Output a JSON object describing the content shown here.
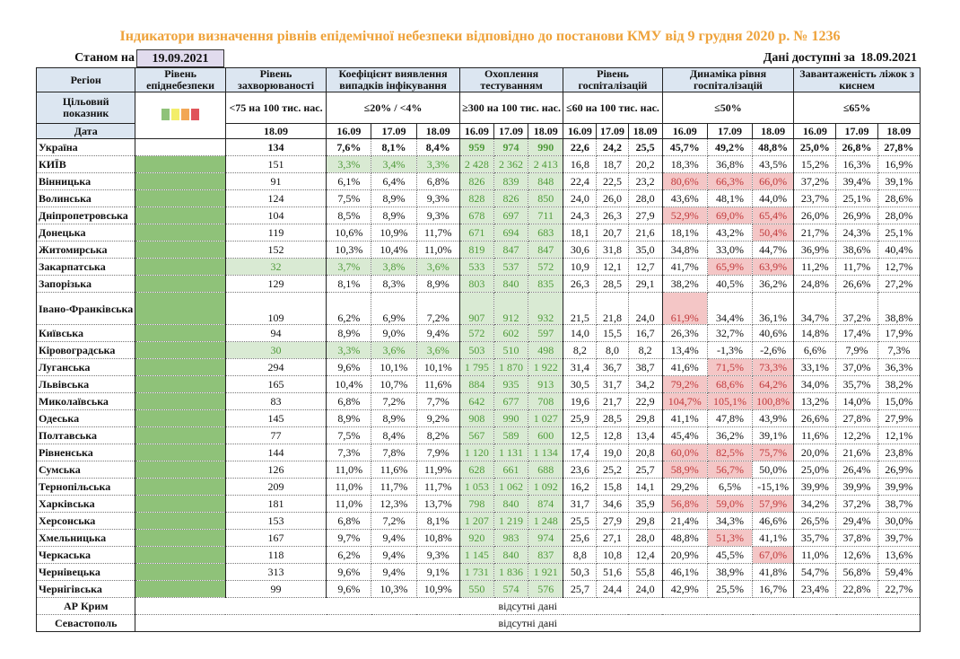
{
  "title": "Індикатори визначення рівнів епідемічної небезпеки відповідно до постанови КМУ від 9 грудня 2020 р. № 1236",
  "as_of_label": "Станом на",
  "as_of_date": "19.09.2021",
  "available_label": "Дані доступні за",
  "available_date": "18.09.2021",
  "headers": {
    "region": "Регіон",
    "level": "Рівень епіднебезпеки",
    "incidence": "Рівень захворюваності",
    "coef": "Коефіцієнт виявлення випадків інфікування",
    "testing": "Охоплення тестуванням",
    "hosp": "Рівень госпіталізацій",
    "dyn": "Динаміка рівня госпіталізацій",
    "beds": "Завантаженість ліжок з киснем"
  },
  "target": {
    "label": "Цільовий показник",
    "incidence": "<75 на 100 тис. нас.",
    "coef": "≤20% / <4%",
    "testing": "≥300 на 100 тис. нас.",
    "hosp": "≤60 на 100 тис. нас.",
    "dyn": "≤50%",
    "beds": "≤65%",
    "level_colors": [
      "#8fc279",
      "#f3ee6a",
      "#f2a755",
      "#e0545a"
    ]
  },
  "date_label": "Дата",
  "incidence_date": "18.09",
  "dates": [
    "16.09",
    "17.09",
    "18.09"
  ],
  "colors": {
    "level_green": "#8fc279",
    "ok_bg": "#d9ead3",
    "bad_bg": "#f4c6c6",
    "title": "#eea23a",
    "header": "#dce6f1"
  },
  "rows": [
    {
      "region": "Україна",
      "inc": "134",
      "coef": [
        "7,6%",
        "8,1%",
        "8,4%"
      ],
      "test": [
        "959",
        "974",
        "990"
      ],
      "hosp": [
        "22,6",
        "24,2",
        "25,5"
      ],
      "dyn": [
        "45,7%",
        "49,2%",
        "48,8%"
      ],
      "beds": [
        "25,0%",
        "26,8%",
        "27,8%"
      ],
      "red": [
        0,
        0,
        0
      ]
    },
    {
      "region": "КИЇВ",
      "inc": "151",
      "coef": [
        "3,3%",
        "3,4%",
        "3,3%"
      ],
      "test": [
        "2 428",
        "2 362",
        "2 413"
      ],
      "hosp": [
        "16,8",
        "18,7",
        "20,2"
      ],
      "dyn": [
        "18,3%",
        "36,8%",
        "43,5%"
      ],
      "beds": [
        "15,2%",
        "16,3%",
        "16,9%"
      ],
      "red": [
        0,
        0,
        0
      ],
      "coefg": 1
    },
    {
      "region": "Вінницька",
      "inc": "91",
      "coef": [
        "6,1%",
        "6,4%",
        "6,8%"
      ],
      "test": [
        "826",
        "839",
        "848"
      ],
      "hosp": [
        "22,4",
        "22,5",
        "23,2"
      ],
      "dyn": [
        "80,6%",
        "66,3%",
        "66,0%"
      ],
      "beds": [
        "37,2%",
        "39,4%",
        "39,1%"
      ],
      "red": [
        1,
        1,
        1
      ]
    },
    {
      "region": "Волинська",
      "inc": "124",
      "coef": [
        "7,5%",
        "8,9%",
        "9,3%"
      ],
      "test": [
        "828",
        "826",
        "850"
      ],
      "hosp": [
        "24,0",
        "26,0",
        "28,0"
      ],
      "dyn": [
        "43,6%",
        "48,1%",
        "44,0%"
      ],
      "beds": [
        "23,7%",
        "25,1%",
        "28,6%"
      ],
      "red": [
        0,
        0,
        0
      ]
    },
    {
      "region": "Дніпропетровська",
      "inc": "104",
      "coef": [
        "8,5%",
        "8,9%",
        "9,3%"
      ],
      "test": [
        "678",
        "697",
        "711"
      ],
      "hosp": [
        "24,3",
        "26,3",
        "27,9"
      ],
      "dyn": [
        "52,9%",
        "69,0%",
        "65,4%"
      ],
      "beds": [
        "26,0%",
        "26,9%",
        "28,0%"
      ],
      "red": [
        1,
        1,
        1
      ]
    },
    {
      "region": "Донецька",
      "inc": "119",
      "coef": [
        "10,6%",
        "10,9%",
        "11,7%"
      ],
      "test": [
        "671",
        "694",
        "683"
      ],
      "hosp": [
        "18,1",
        "20,7",
        "21,6"
      ],
      "dyn": [
        "18,1%",
        "43,2%",
        "50,4%"
      ],
      "beds": [
        "21,7%",
        "24,3%",
        "25,1%"
      ],
      "red": [
        0,
        0,
        1
      ]
    },
    {
      "region": "Житомирська",
      "inc": "152",
      "coef": [
        "10,3%",
        "10,4%",
        "11,0%"
      ],
      "test": [
        "819",
        "847",
        "847"
      ],
      "hosp": [
        "30,6",
        "31,8",
        "35,0"
      ],
      "dyn": [
        "34,8%",
        "33,0%",
        "44,7%"
      ],
      "beds": [
        "36,9%",
        "38,6%",
        "40,4%"
      ],
      "red": [
        0,
        0,
        0
      ]
    },
    {
      "region": "Закарпатська",
      "inc": "32",
      "coef": [
        "3,7%",
        "3,8%",
        "3,6%"
      ],
      "test": [
        "533",
        "537",
        "572"
      ],
      "hosp": [
        "10,9",
        "12,1",
        "12,7"
      ],
      "dyn": [
        "41,7%",
        "65,9%",
        "63,9%"
      ],
      "beds": [
        "11,2%",
        "11,7%",
        "12,7%"
      ],
      "red": [
        0,
        1,
        1
      ],
      "coefg": 1,
      "incg": 1
    },
    {
      "region": "Запорізька",
      "inc": "129",
      "coef": [
        "8,1%",
        "8,3%",
        "8,9%"
      ],
      "test": [
        "803",
        "840",
        "835"
      ],
      "hosp": [
        "26,3",
        "28,5",
        "29,1"
      ],
      "dyn": [
        "38,2%",
        "40,5%",
        "36,2%"
      ],
      "beds": [
        "24,8%",
        "26,6%",
        "27,2%"
      ],
      "red": [
        0,
        0,
        0
      ]
    },
    {
      "region": "Івано-Франківська",
      "inc": "109",
      "coef": [
        "6,2%",
        "6,9%",
        "7,2%"
      ],
      "test": [
        "907",
        "912",
        "932"
      ],
      "hosp": [
        "21,5",
        "21,8",
        "24,0"
      ],
      "dyn": [
        "61,9%",
        "34,4%",
        "36,1%"
      ],
      "beds": [
        "34,7%",
        "37,2%",
        "38,8%"
      ],
      "red": [
        1,
        0,
        0
      ],
      "tall": 1
    },
    {
      "region": "Київська",
      "inc": "94",
      "coef": [
        "8,9%",
        "9,0%",
        "9,4%"
      ],
      "test": [
        "572",
        "602",
        "597"
      ],
      "hosp": [
        "14,0",
        "15,5",
        "16,7"
      ],
      "dyn": [
        "26,3%",
        "32,7%",
        "40,6%"
      ],
      "beds": [
        "14,8%",
        "17,4%",
        "17,9%"
      ],
      "red": [
        0,
        0,
        0
      ]
    },
    {
      "region": "Кіровоградська",
      "inc": "30",
      "coef": [
        "3,3%",
        "3,6%",
        "3,6%"
      ],
      "test": [
        "503",
        "510",
        "498"
      ],
      "hosp": [
        "8,2",
        "8,0",
        "8,2"
      ],
      "dyn": [
        "13,4%",
        "-1,3%",
        "-2,6%"
      ],
      "beds": [
        "6,6%",
        "7,9%",
        "7,3%"
      ],
      "red": [
        0,
        0,
        0
      ],
      "coefg": 1,
      "incg": 1
    },
    {
      "region": "Луганська",
      "inc": "294",
      "coef": [
        "9,6%",
        "10,1%",
        "10,1%"
      ],
      "test": [
        "1 795",
        "1 870",
        "1 922"
      ],
      "hosp": [
        "31,4",
        "36,7",
        "38,7"
      ],
      "dyn": [
        "41,6%",
        "71,5%",
        "73,3%"
      ],
      "beds": [
        "33,1%",
        "37,0%",
        "36,3%"
      ],
      "red": [
        0,
        1,
        1
      ]
    },
    {
      "region": "Львівська",
      "inc": "165",
      "coef": [
        "10,4%",
        "10,7%",
        "11,6%"
      ],
      "test": [
        "884",
        "935",
        "913"
      ],
      "hosp": [
        "30,5",
        "31,7",
        "34,2"
      ],
      "dyn": [
        "79,2%",
        "68,6%",
        "64,2%"
      ],
      "beds": [
        "34,0%",
        "35,7%",
        "38,2%"
      ],
      "red": [
        1,
        1,
        1
      ]
    },
    {
      "region": "Миколаївська",
      "inc": "83",
      "coef": [
        "6,8%",
        "7,2%",
        "7,7%"
      ],
      "test": [
        "642",
        "677",
        "708"
      ],
      "hosp": [
        "19,6",
        "21,7",
        "22,9"
      ],
      "dyn": [
        "104,7%",
        "105,1%",
        "100,8%"
      ],
      "beds": [
        "13,2%",
        "14,0%",
        "15,0%"
      ],
      "red": [
        1,
        1,
        1
      ]
    },
    {
      "region": "Одеська",
      "inc": "145",
      "coef": [
        "8,9%",
        "8,9%",
        "9,2%"
      ],
      "test": [
        "908",
        "990",
        "1 027"
      ],
      "hosp": [
        "25,9",
        "28,5",
        "29,8"
      ],
      "dyn": [
        "41,1%",
        "47,8%",
        "43,9%"
      ],
      "beds": [
        "26,6%",
        "27,8%",
        "27,9%"
      ],
      "red": [
        0,
        0,
        0
      ]
    },
    {
      "region": "Полтавська",
      "inc": "77",
      "coef": [
        "7,5%",
        "8,4%",
        "8,2%"
      ],
      "test": [
        "567",
        "589",
        "600"
      ],
      "hosp": [
        "12,5",
        "12,8",
        "13,4"
      ],
      "dyn": [
        "45,4%",
        "36,2%",
        "39,1%"
      ],
      "beds": [
        "11,6%",
        "12,2%",
        "12,1%"
      ],
      "red": [
        0,
        0,
        0
      ]
    },
    {
      "region": "Рівненська",
      "inc": "144",
      "coef": [
        "7,3%",
        "7,8%",
        "7,9%"
      ],
      "test": [
        "1 120",
        "1 131",
        "1 134"
      ],
      "hosp": [
        "17,4",
        "19,0",
        "20,8"
      ],
      "dyn": [
        "60,0%",
        "82,5%",
        "75,7%"
      ],
      "beds": [
        "20,0%",
        "21,6%",
        "23,8%"
      ],
      "red": [
        1,
        1,
        1
      ]
    },
    {
      "region": "Сумська",
      "inc": "126",
      "coef": [
        "11,0%",
        "11,6%",
        "11,9%"
      ],
      "test": [
        "628",
        "661",
        "688"
      ],
      "hosp": [
        "23,6",
        "25,2",
        "25,7"
      ],
      "dyn": [
        "58,9%",
        "56,7%",
        "50,0%"
      ],
      "beds": [
        "25,0%",
        "26,4%",
        "26,9%"
      ],
      "red": [
        1,
        1,
        0
      ]
    },
    {
      "region": "Тернопільська",
      "inc": "209",
      "coef": [
        "11,0%",
        "11,7%",
        "11,7%"
      ],
      "test": [
        "1 053",
        "1 062",
        "1 092"
      ],
      "hosp": [
        "16,2",
        "15,8",
        "14,1"
      ],
      "dyn": [
        "29,2%",
        "6,5%",
        "-15,1%"
      ],
      "beds": [
        "39,9%",
        "39,9%",
        "39,9%"
      ],
      "red": [
        0,
        0,
        0
      ]
    },
    {
      "region": "Харківська",
      "inc": "181",
      "coef": [
        "11,0%",
        "12,3%",
        "13,7%"
      ],
      "test": [
        "798",
        "840",
        "874"
      ],
      "hosp": [
        "31,7",
        "34,6",
        "35,9"
      ],
      "dyn": [
        "56,8%",
        "59,0%",
        "57,9%"
      ],
      "beds": [
        "34,2%",
        "37,2%",
        "38,7%"
      ],
      "red": [
        1,
        1,
        1
      ]
    },
    {
      "region": "Херсонська",
      "inc": "153",
      "coef": [
        "6,8%",
        "7,2%",
        "8,1%"
      ],
      "test": [
        "1 207",
        "1 219",
        "1 248"
      ],
      "hosp": [
        "25,5",
        "27,9",
        "29,8"
      ],
      "dyn": [
        "21,4%",
        "34,3%",
        "46,6%"
      ],
      "beds": [
        "26,5%",
        "29,4%",
        "30,0%"
      ],
      "red": [
        0,
        0,
        0
      ]
    },
    {
      "region": "Хмельницька",
      "inc": "167",
      "coef": [
        "9,7%",
        "9,4%",
        "10,8%"
      ],
      "test": [
        "920",
        "983",
        "974"
      ],
      "hosp": [
        "25,6",
        "27,1",
        "28,0"
      ],
      "dyn": [
        "48,8%",
        "51,3%",
        "41,1%"
      ],
      "beds": [
        "35,7%",
        "37,8%",
        "39,7%"
      ],
      "red": [
        0,
        1,
        0
      ]
    },
    {
      "region": "Черкаська",
      "inc": "118",
      "coef": [
        "6,2%",
        "9,4%",
        "9,3%"
      ],
      "test": [
        "1 145",
        "840",
        "837"
      ],
      "hosp": [
        "8,8",
        "10,8",
        "12,4"
      ],
      "dyn": [
        "20,9%",
        "45,5%",
        "67,0%"
      ],
      "beds": [
        "11,0%",
        "12,6%",
        "13,6%"
      ],
      "red": [
        0,
        0,
        1
      ]
    },
    {
      "region": "Чернівецька",
      "inc": "313",
      "coef": [
        "9,6%",
        "9,4%",
        "9,1%"
      ],
      "test": [
        "1 731",
        "1 836",
        "1 921"
      ],
      "hosp": [
        "50,3",
        "51,6",
        "55,8"
      ],
      "dyn": [
        "46,1%",
        "38,9%",
        "41,8%"
      ],
      "beds": [
        "54,7%",
        "56,8%",
        "59,4%"
      ],
      "red": [
        0,
        0,
        0
      ]
    },
    {
      "region": "Чернігівська",
      "inc": "99",
      "coef": [
        "9,6%",
        "10,3%",
        "10,9%"
      ],
      "test": [
        "550",
        "574",
        "576"
      ],
      "hosp": [
        "25,7",
        "24,4",
        "24,0"
      ],
      "dyn": [
        "42,9%",
        "25,5%",
        "16,7%"
      ],
      "beds": [
        "23,4%",
        "22,8%",
        "22,7%"
      ],
      "red": [
        0,
        0,
        0
      ]
    }
  ],
  "no_data_rows": [
    {
      "region": "АР Крим",
      "text": "відсутні дані"
    },
    {
      "region": "Севастополь",
      "text": "відсутні дані"
    }
  ]
}
